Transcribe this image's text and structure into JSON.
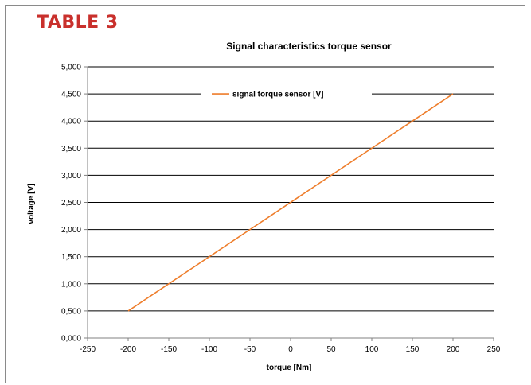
{
  "page": {
    "table_label": "TABLE 3"
  },
  "colors": {
    "accent": "#c9302c",
    "series": "#ee7d2b",
    "grid": "#000000",
    "axis": "#808080"
  },
  "chart_data": {
    "type": "line",
    "title": "Signal characteristics torque sensor",
    "xlabel": "torque [Nm]",
    "ylabel": "voltage [V]",
    "xlim": [
      -250,
      250
    ],
    "ylim": [
      0,
      5
    ],
    "x_ticks": [
      -250,
      -200,
      -150,
      -100,
      -50,
      0,
      50,
      100,
      150,
      200,
      250
    ],
    "x_tick_labels": [
      "-250",
      "-200",
      "-150",
      "-100",
      "-50",
      "0",
      "50",
      "100",
      "150",
      "200",
      "250"
    ],
    "y_ticks": [
      0,
      0.5,
      1,
      1.5,
      2,
      2.5,
      3,
      3.5,
      4,
      4.5,
      5
    ],
    "y_tick_labels": [
      "0,000",
      "0,500",
      "1,000",
      "1,500",
      "2,000",
      "2,500",
      "3,000",
      "3,500",
      "4,000",
      "4,500",
      "5,000"
    ],
    "grid": "horizontal",
    "legend_position": "top-center",
    "series": [
      {
        "name": "signal torque sensor [V]",
        "x": [
          -200,
          200
        ],
        "values": [
          0.5,
          4.5
        ]
      }
    ]
  }
}
